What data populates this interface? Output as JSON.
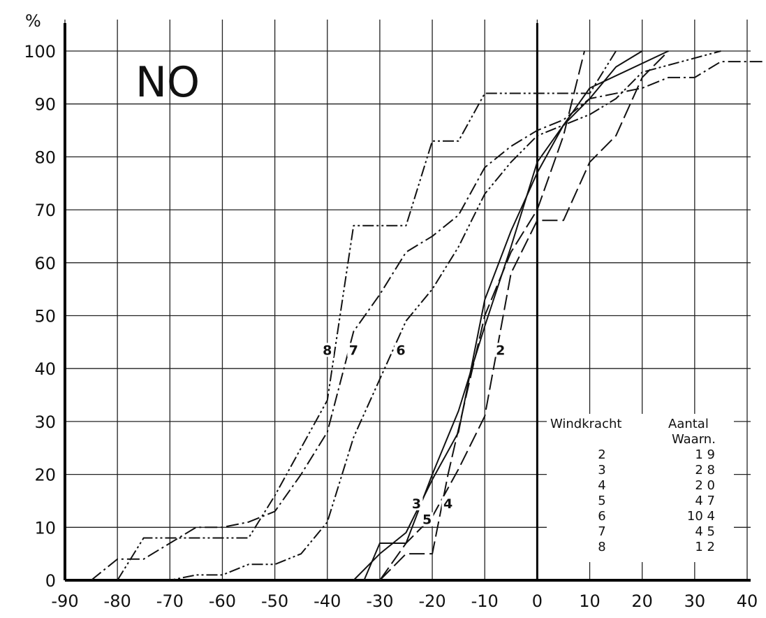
{
  "chart_data": {
    "type": "line",
    "title": "NO",
    "ylabel": "%",
    "xlabel": "",
    "xlim": [
      -90,
      40
    ],
    "ylim": [
      0,
      100
    ],
    "x_ticks": [
      -90,
      -80,
      -70,
      -60,
      -50,
      -40,
      -30,
      -20,
      -10,
      0,
      10,
      20,
      30,
      40
    ],
    "y_ticks": [
      0,
      10,
      20,
      30,
      40,
      50,
      60,
      70,
      80,
      90,
      100
    ],
    "x_tick_labels": [
      "-90",
      "-80",
      "-70",
      "-60",
      "-50",
      "-40",
      "-30",
      "-20",
      "-10",
      "0",
      "10",
      "20",
      "30",
      "40"
    ],
    "y_tick_labels": [
      "0",
      "10",
      "20",
      "30",
      "40",
      "50",
      "60",
      "70",
      "80",
      "90",
      "100"
    ],
    "grid": true,
    "legend": {
      "placement": "bottom-right",
      "header_left": "Windkracht",
      "header_right_1": "Aantal",
      "header_right_2": "Waarn.",
      "rows": [
        {
          "windkracht": "2",
          "aantal": "1 9"
        },
        {
          "windkracht": "3",
          "aantal": "2 8"
        },
        {
          "windkracht": "4",
          "aantal": "2 0"
        },
        {
          "windkracht": "5",
          "aantal": "4 7"
        },
        {
          "windkracht": "6",
          "aantal": "10 4"
        },
        {
          "windkracht": "7",
          "aantal": "4 5"
        },
        {
          "windkracht": "8",
          "aantal": "1 2"
        }
      ]
    },
    "series": [
      {
        "name": "2",
        "style": "longdash",
        "x": [
          -30,
          -25,
          -20,
          -15,
          -10,
          -5,
          0,
          5,
          10,
          15,
          20,
          25
        ],
        "y": [
          0,
          7,
          12,
          21,
          31,
          58,
          68,
          68,
          79,
          84,
          95,
          100
        ],
        "label_at": [
          -7,
          43
        ]
      },
      {
        "name": "3",
        "style": "solid",
        "x": [
          -33,
          -30,
          -25,
          -20,
          -15,
          -10,
          -5,
          0,
          5,
          10,
          15,
          20
        ],
        "y": [
          0,
          7,
          7,
          20,
          32,
          48,
          63,
          79,
          86,
          91,
          97,
          100
        ],
        "label_at": [
          -23,
          14
        ]
      },
      {
        "name": "4",
        "style": "longdash",
        "x": [
          -30,
          -25,
          -20,
          -17,
          -10,
          -5,
          0,
          5,
          9
        ],
        "y": [
          0,
          5,
          5,
          20,
          50,
          62,
          70,
          84,
          100
        ],
        "label_at": [
          -17,
          14
        ]
      },
      {
        "name": "5",
        "style": "solid",
        "x": [
          -35,
          -30,
          -25,
          -20,
          -15,
          -10,
          -5,
          0,
          5,
          10,
          25
        ],
        "y": [
          0,
          5,
          9,
          19,
          28,
          53,
          66,
          77,
          86,
          93,
          100
        ],
        "label_at": [
          -21,
          11
        ]
      },
      {
        "name": "6",
        "style": "dashdotdot",
        "x": [
          -72,
          -70,
          -65,
          -60,
          -55,
          -50,
          -45,
          -40,
          -35,
          -30,
          -25,
          -20,
          -15,
          -10,
          -5,
          0,
          5,
          10,
          15,
          20,
          35
        ],
        "y": [
          0,
          0,
          1,
          1,
          3,
          3,
          5,
          11,
          27,
          38,
          49,
          55,
          63,
          73,
          79,
          84,
          86,
          88,
          91,
          96,
          100
        ],
        "label_at": [
          -26,
          43
        ]
      },
      {
        "name": "7",
        "style": "dashdot",
        "x": [
          -85,
          -80,
          -75,
          -70,
          -65,
          -60,
          -55,
          -50,
          -45,
          -40,
          -35,
          -30,
          -25,
          -20,
          -15,
          -10,
          -5,
          0,
          5,
          10,
          15,
          20,
          25,
          30,
          35,
          45
        ],
        "y": [
          0,
          4,
          4,
          7,
          10,
          10,
          11,
          13,
          20,
          28,
          47,
          54,
          62,
          65,
          69,
          78,
          82,
          85,
          87,
          91,
          92,
          93,
          95,
          95,
          98,
          98
        ],
        "label_at": [
          -35,
          43
        ]
      },
      {
        "name": "8",
        "style": "dashdotdot",
        "x": [
          -80,
          -75,
          -70,
          -65,
          -60,
          -55,
          -50,
          -45,
          -40,
          -35,
          -30,
          -25,
          -20,
          -15,
          -10,
          0,
          5,
          10,
          15
        ],
        "y": [
          0,
          8,
          8,
          8,
          8,
          8,
          16,
          25,
          34,
          67,
          67,
          67,
          83,
          83,
          92,
          92,
          92,
          92,
          100
        ],
        "label_at": [
          -40,
          43
        ]
      }
    ]
  }
}
